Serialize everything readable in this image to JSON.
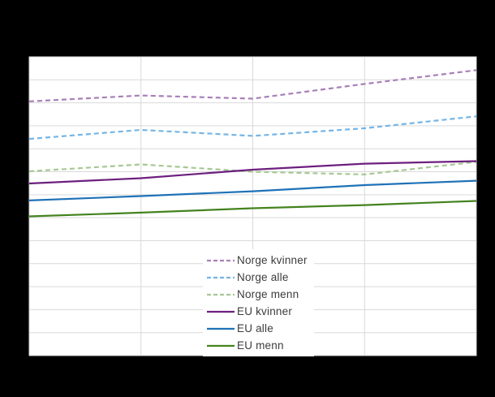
{
  "window": {
    "background_color": "#000000"
  },
  "plot": {
    "background_color": "#ffffff",
    "border_color": "#d9d9d9",
    "gridline_color": "#d9d9d9"
  },
  "chart_data": {
    "type": "line",
    "title": "",
    "x": [
      1,
      2,
      3,
      4,
      5
    ],
    "x_tick_labels_visible": false,
    "y_axis": {
      "min": 0,
      "max": 13,
      "gridline_step": 1,
      "tick_labels_visible": false
    },
    "grid": "on",
    "legend_position": "inside-bottom-center",
    "legend_text_color": "#3c3c3c",
    "series": [
      {
        "id": "norge-kvinner",
        "name": "Norge kvinner",
        "color": "#a87fb8",
        "style": "dashed",
        "values": [
          11.06,
          11.32,
          11.18,
          11.82,
          12.42
        ]
      },
      {
        "id": "norge-alle",
        "name": "Norge alle",
        "color": "#75b5e5",
        "style": "dashed",
        "values": [
          9.43,
          9.82,
          9.56,
          9.89,
          10.41
        ]
      },
      {
        "id": "norge-menn",
        "name": "Norge menn",
        "color": "#a6c893",
        "style": "dashed",
        "values": [
          8.02,
          8.32,
          8.0,
          7.88,
          8.43
        ]
      },
      {
        "id": "eu-kvinner",
        "name": "EU kvinner",
        "color": "#6d1f7e",
        "style": "solid",
        "values": [
          7.49,
          7.72,
          8.09,
          8.35,
          8.46
        ]
      },
      {
        "id": "eu-alle",
        "name": "EU alle",
        "color": "#1f72b8",
        "style": "solid",
        "values": [
          6.75,
          6.94,
          7.15,
          7.42,
          7.61
        ]
      },
      {
        "id": "eu-menn",
        "name": "EU menn",
        "color": "#44831e",
        "style": "solid",
        "values": [
          6.06,
          6.22,
          6.41,
          6.55,
          6.73
        ]
      }
    ]
  }
}
